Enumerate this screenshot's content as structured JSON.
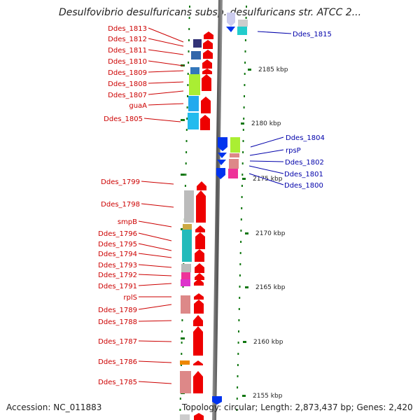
{
  "title": "Desulfovibrio desulfuricans subsp. desulfuricans str. ATCC 2...",
  "footer": {
    "accession": "Accession: NC_011883",
    "topology": "Topology: circular; Length: 2,873,437 bp; Genes: 2,420"
  },
  "colors": {
    "reverse_label": "#cc0000",
    "forward_label": "#0000aa",
    "arrow_red": "#ee0000",
    "arrow_blue": "#0033ee",
    "tick": "#117711"
  },
  "kbp_labels": [
    "2185 kbp",
    "2180 kbp",
    "2175 kbp",
    "2170 kbp",
    "2165 kbp",
    "2160 kbp",
    "2155 kbp"
  ],
  "left_genes": [
    "Ddes_1813",
    "Ddes_1812",
    "Ddes_1811",
    "Ddes_1810",
    "Ddes_1809",
    "Ddes_1808",
    "Ddes_1807",
    "guaA",
    "Ddes_1805",
    "Ddes_1799",
    "Ddes_1798",
    "smpB",
    "Ddes_1796",
    "Ddes_1795",
    "Ddes_1794",
    "Ddes_1793",
    "Ddes_1792",
    "Ddes_1791",
    "rplS",
    "Ddes_1789",
    "Ddes_1788",
    "Ddes_1787",
    "Ddes_1786",
    "Ddes_1785"
  ],
  "right_genes": [
    "Ddes_1815",
    "Ddes_1804",
    "rpsP",
    "Ddes_1802",
    "Ddes_1801",
    "Ddes_1800"
  ]
}
